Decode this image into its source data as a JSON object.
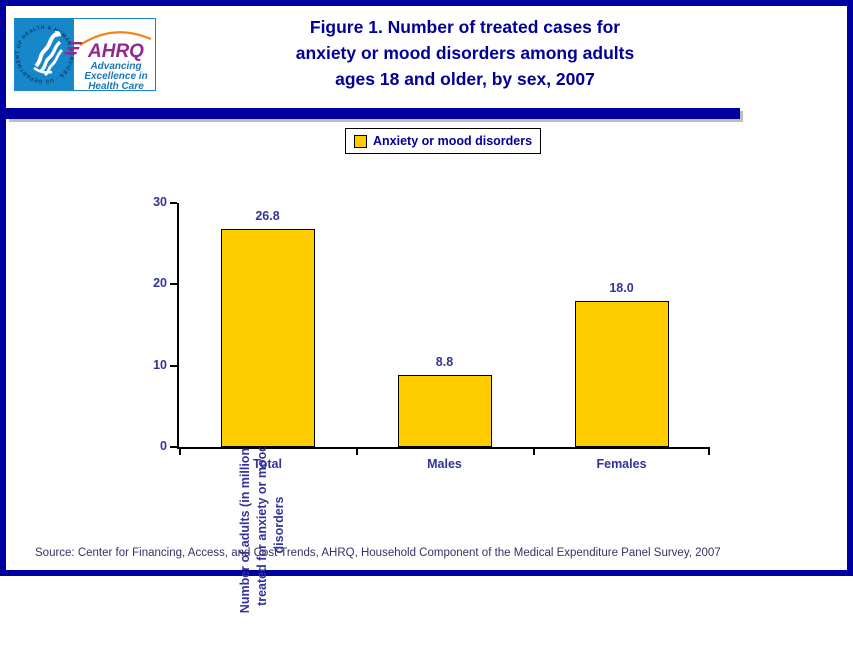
{
  "page": {
    "border_color": "#0000A0",
    "background": "#FFFFFF"
  },
  "header": {
    "logo": {
      "org": "AHRQ",
      "seal_text": "DEPARTMENT OF HEALTH & HUMAN SERVICES - USA",
      "tagline_lines": [
        "Advancing",
        "Excellence in",
        "Health Care"
      ],
      "seal_blue": "#1787C9",
      "org_purple": "#93278F",
      "tagline_blue": "#1B75BB"
    },
    "title_lines": [
      "Figure 1. Number of treated cases for",
      "anxiety or mood disorders among adults",
      "ages 18 and older, by sex, 2007"
    ],
    "title_color": "#000099"
  },
  "legend": {
    "label": "Anxiety or mood disorders",
    "swatch_color": "#FFCC00"
  },
  "chart_data": {
    "type": "bar",
    "categories": [
      "Total",
      "Males",
      "Females"
    ],
    "values": [
      26.8,
      8.8,
      18.0
    ],
    "value_labels": [
      "26.8",
      "8.8",
      "18.0"
    ],
    "series": [
      {
        "name": "Anxiety or mood disorders",
        "values": [
          26.8,
          8.8,
          18.0
        ]
      }
    ],
    "title": "Figure 1. Number of treated cases for anxiety or mood disorders among adults ages 18 and older, by sex, 2007",
    "xlabel": "",
    "ylabel_lines": [
      "Number of adults (in millions)",
      "treated for anxiety or mood",
      "disorders"
    ],
    "ylim": [
      0,
      30
    ],
    "yticks": [
      0,
      10,
      20,
      30
    ],
    "grid": false,
    "legend_position": "top",
    "bar_color": "#FFCC00",
    "bar_border_color": "#000000",
    "label_color": "#333399"
  },
  "footer": {
    "source": "Source: Center for Financing, Access, and Cost Trends, AHRQ, Household Component of the Medical Expenditure Panel Survey, 2007"
  }
}
